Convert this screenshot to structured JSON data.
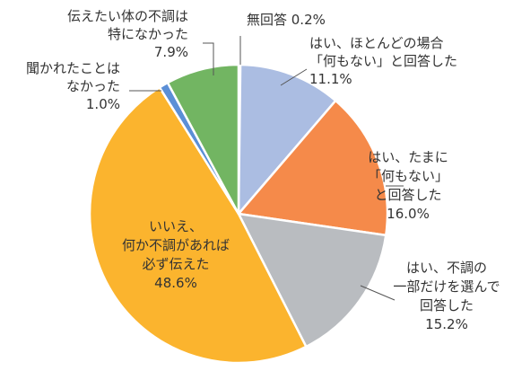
{
  "chart_data": {
    "type": "pie",
    "start_angle_deg": 0,
    "direction": "clockwise",
    "slices": [
      {
        "lines": [
          "無回答 0.2%"
        ],
        "value": 0.2,
        "color": "#7ba3d8"
      },
      {
        "lines": [
          "はい、ほとんどの場合",
          "「何もない」と回答した",
          "11.1%"
        ],
        "value": 11.1,
        "color": "#abbde2"
      },
      {
        "lines": [
          "はい、たまに",
          "「何もない」",
          "と回答した",
          "16.0%"
        ],
        "value": 16.0,
        "color": "#f58a4a"
      },
      {
        "lines": [
          "はい、不調の",
          "一部だけを選んで",
          "回答した",
          "15.2%"
        ],
        "value": 15.2,
        "color": "#b9bcc0"
      },
      {
        "lines": [
          "いいえ、",
          "何か不調があれば",
          "必ず伝えた",
          "48.6%"
        ],
        "value": 48.6,
        "color": "#fbb42e"
      },
      {
        "lines": [
          "聞かれたことは",
          "なかった",
          "1.0%"
        ],
        "value": 1.0,
        "color": "#5b8fd6"
      },
      {
        "lines": [
          "伝えたい体の不調は",
          "特になかった",
          "7.9%"
        ],
        "value": 7.9,
        "color": "#72b562"
      }
    ]
  }
}
